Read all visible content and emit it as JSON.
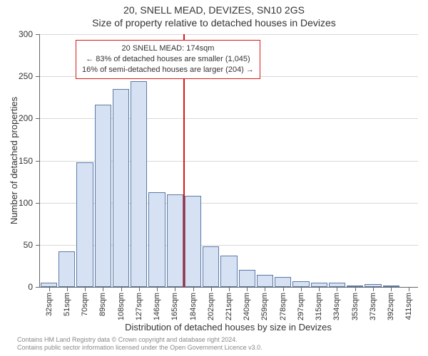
{
  "header": {
    "address": "20, SNELL MEAD, DEVIZES, SN10 2GS",
    "subtitle": "Size of property relative to detached houses in Devizes"
  },
  "chart": {
    "type": "histogram",
    "y_axis_title": "Number of detached properties",
    "x_axis_title": "Distribution of detached houses by size in Devizes",
    "ylim": [
      0,
      300
    ],
    "ytick_step": 50,
    "yticks": [
      0,
      50,
      100,
      150,
      200,
      250,
      300
    ],
    "x_categories": [
      "32sqm",
      "51sqm",
      "70sqm",
      "89sqm",
      "108sqm",
      "127sqm",
      "146sqm",
      "165sqm",
      "184sqm",
      "202sqm",
      "221sqm",
      "240sqm",
      "259sqm",
      "278sqm",
      "297sqm",
      "315sqm",
      "334sqm",
      "353sqm",
      "373sqm",
      "392sqm",
      "411sqm"
    ],
    "values": [
      5,
      42,
      148,
      216,
      235,
      244,
      112,
      110,
      108,
      48,
      37,
      20,
      14,
      12,
      7,
      5,
      5,
      2,
      3,
      2,
      0
    ],
    "bar_fill": "#d6e2f3",
    "bar_border": "#5b7aa8",
    "grid_color": "#d9d9d9",
    "axis_color": "#666666",
    "background_color": "#ffffff",
    "bar_width_ratio": 0.92,
    "reference_line": {
      "x_value_sqm": 174,
      "color": "#d91818"
    },
    "annotation": {
      "line1": "20 SNELL MEAD: 174sqm",
      "line2": "← 83% of detached houses are smaller (1,045)",
      "line3": "16% of semi-detached houses are larger (204) →",
      "border_color": "#d91818",
      "background": "#ffffff",
      "fontsize": 11
    }
  },
  "footer": {
    "line1": "Contains HM Land Registry data © Crown copyright and database right 2024.",
    "line2": "Contains public sector information licensed under the Open Government Licence v3.0."
  }
}
